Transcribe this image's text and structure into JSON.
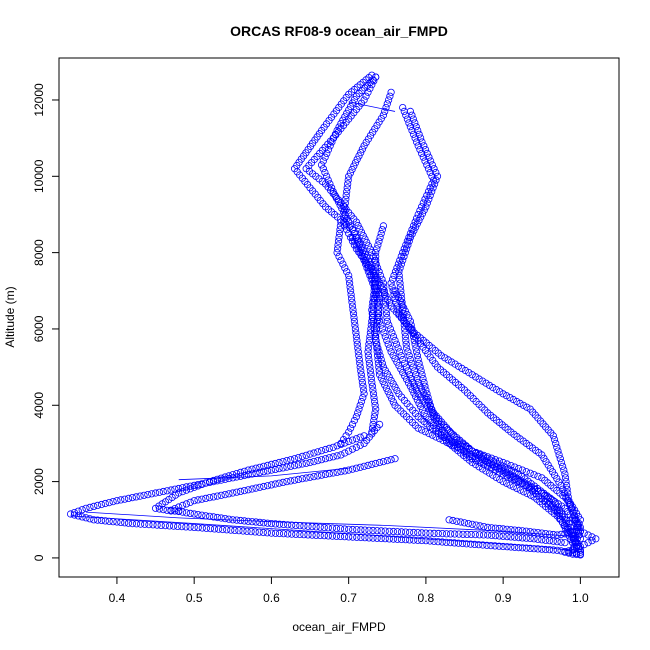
{
  "chart_data": {
    "type": "scatter",
    "title": "ORCAS RF08-9 ocean_air_FMPD",
    "xlabel": "ocean_air_FMPD",
    "ylabel": "Altitude (m)",
    "xlim": [
      0.325,
      1.05
    ],
    "ylim": [
      -500,
      13100
    ],
    "xticks": [
      0.4,
      0.5,
      0.6,
      0.7,
      0.8,
      0.9,
      1.0
    ],
    "xtick_labels": [
      "0.4",
      "0.5",
      "0.6",
      "0.7",
      "0.8",
      "0.9",
      "1.0"
    ],
    "yticks": [
      0,
      2000,
      4000,
      6000,
      8000,
      10000,
      12000
    ],
    "ytick_labels": [
      "0",
      "2000",
      "4000",
      "6000",
      "8000",
      "10000",
      "12000"
    ],
    "grid": false,
    "marker": "open-circle",
    "color": "#0000ff",
    "profiles": [
      [
        [
          0.73,
          12650
        ],
        [
          0.7,
          12150
        ],
        [
          0.665,
          11200
        ],
        [
          0.63,
          10200
        ],
        [
          0.67,
          9200
        ],
        [
          0.705,
          8600
        ],
        [
          0.72,
          7900
        ],
        [
          0.735,
          7100
        ],
        [
          0.74,
          6200
        ],
        [
          0.755,
          5400
        ],
        [
          0.78,
          4500
        ],
        [
          0.8,
          3700
        ],
        [
          0.83,
          3000
        ],
        [
          0.86,
          2500
        ],
        [
          0.9,
          2000
        ],
        [
          0.94,
          1600
        ],
        [
          0.97,
          1100
        ],
        [
          0.99,
          600
        ],
        [
          1.0,
          150
        ]
      ],
      [
        [
          0.735,
          12600
        ],
        [
          0.72,
          12000
        ],
        [
          0.68,
          11000
        ],
        [
          0.645,
          10200
        ],
        [
          0.67,
          9800
        ],
        [
          0.71,
          8800
        ],
        [
          0.73,
          8000
        ],
        [
          0.745,
          7200
        ],
        [
          0.75,
          6200
        ],
        [
          0.77,
          5200
        ],
        [
          0.79,
          4300
        ],
        [
          0.82,
          3500
        ],
        [
          0.86,
          2800
        ],
        [
          0.92,
          2200
        ],
        [
          0.965,
          1500
        ],
        [
          0.985,
          900
        ],
        [
          1.0,
          200
        ]
      ],
      [
        [
          0.735,
          12600
        ],
        [
          0.71,
          12100
        ],
        [
          0.685,
          11200
        ],
        [
          0.665,
          10300
        ],
        [
          0.68,
          9600
        ],
        [
          0.7,
          8800
        ],
        [
          0.71,
          8400
        ],
        [
          0.73,
          7600
        ],
        [
          0.74,
          6800
        ],
        [
          0.735,
          5800
        ],
        [
          0.74,
          4800
        ],
        [
          0.76,
          4000
        ],
        [
          0.79,
          3400
        ],
        [
          0.85,
          2800
        ],
        [
          0.9,
          2300
        ],
        [
          0.95,
          1700
        ],
        [
          0.98,
          1000
        ],
        [
          0.995,
          300
        ]
      ],
      [
        [
          0.755,
          12200
        ],
        [
          0.745,
          11600
        ],
        [
          0.72,
          10800
        ],
        [
          0.7,
          10000
        ],
        [
          0.695,
          9200
        ],
        [
          0.695,
          8700
        ],
        [
          0.71,
          8100
        ],
        [
          0.735,
          7400
        ],
        [
          0.755,
          6600
        ],
        [
          0.785,
          5900
        ],
        [
          0.82,
          5300
        ],
        [
          0.86,
          4800
        ],
        [
          0.9,
          4300
        ],
        [
          0.935,
          3900
        ],
        [
          0.965,
          3200
        ],
        [
          0.98,
          2200
        ],
        [
          0.985,
          1500
        ],
        [
          1.0,
          700
        ],
        [
          0.99,
          200
        ]
      ],
      [
        [
          0.77,
          11800
        ],
        [
          0.79,
          10800
        ],
        [
          0.81,
          9900
        ],
        [
          0.79,
          9000
        ],
        [
          0.77,
          8000
        ],
        [
          0.755,
          7200
        ],
        [
          0.765,
          6400
        ],
        [
          0.79,
          5700
        ],
        [
          0.815,
          5000
        ],
        [
          0.85,
          4400
        ],
        [
          0.88,
          3800
        ],
        [
          0.91,
          3300
        ],
        [
          0.95,
          2700
        ],
        [
          0.975,
          1900
        ],
        [
          0.99,
          1200
        ],
        [
          1.0,
          500
        ]
      ],
      [
        [
          0.78,
          11700
        ],
        [
          0.795,
          10900
        ],
        [
          0.815,
          10000
        ],
        [
          0.8,
          9200
        ],
        [
          0.78,
          8400
        ],
        [
          0.765,
          7500
        ],
        [
          0.77,
          6500
        ],
        [
          0.775,
          5500
        ],
        [
          0.79,
          4600
        ],
        [
          0.81,
          3800
        ],
        [
          0.84,
          3100
        ],
        [
          0.88,
          2500
        ],
        [
          0.93,
          1900
        ],
        [
          0.97,
          1200
        ],
        [
          0.99,
          400
        ]
      ],
      [
        [
          0.69,
          8800
        ],
        [
          0.685,
          8000
        ],
        [
          0.7,
          7400
        ],
        [
          0.705,
          6600
        ],
        [
          0.71,
          5800
        ],
        [
          0.715,
          5000
        ],
        [
          0.72,
          4300
        ],
        [
          0.71,
          3700
        ],
        [
          0.7,
          3300
        ],
        [
          0.69,
          3000
        ]
      ],
      [
        [
          0.705,
          8400
        ],
        [
          0.72,
          7800
        ],
        [
          0.735,
          7000
        ],
        [
          0.73,
          6200
        ],
        [
          0.725,
          5400
        ],
        [
          0.73,
          4600
        ],
        [
          0.735,
          3900
        ],
        [
          0.73,
          3300
        ]
      ],
      [
        [
          0.745,
          8700
        ],
        [
          0.735,
          8000
        ],
        [
          0.735,
          7300
        ],
        [
          0.73,
          6500
        ],
        [
          0.735,
          5700
        ],
        [
          0.745,
          5000
        ],
        [
          0.765,
          4300
        ],
        [
          0.79,
          3700
        ],
        [
          0.82,
          3200
        ],
        [
          0.86,
          2800
        ],
        [
          0.9,
          2500
        ],
        [
          0.95,
          2100
        ],
        [
          0.985,
          1500
        ],
        [
          1.0,
          1000
        ],
        [
          0.99,
          400
        ]
      ],
      [
        [
          0.76,
          7000
        ],
        [
          0.78,
          6200
        ],
        [
          0.79,
          5200
        ],
        [
          0.8,
          4400
        ],
        [
          0.81,
          3700
        ],
        [
          0.83,
          3100
        ],
        [
          0.86,
          2600
        ],
        [
          0.89,
          2300
        ],
        [
          0.92,
          2000
        ],
        [
          0.95,
          1700
        ],
        [
          0.98,
          1300
        ],
        [
          1.0,
          800
        ]
      ],
      [
        [
          0.74,
          3500
        ],
        [
          0.72,
          3000
        ],
        [
          0.69,
          2700
        ],
        [
          0.65,
          2500
        ],
        [
          0.6,
          2300
        ],
        [
          0.55,
          2100
        ],
        [
          0.5,
          1900
        ],
        [
          0.45,
          1700
        ],
        [
          0.4,
          1500
        ],
        [
          0.36,
          1300
        ],
        [
          0.34,
          1150
        ],
        [
          0.37,
          1000
        ],
        [
          0.42,
          900
        ],
        [
          0.5,
          800
        ],
        [
          0.6,
          650
        ],
        [
          0.7,
          550
        ],
        [
          0.8,
          450
        ],
        [
          0.9,
          300
        ],
        [
          0.97,
          200
        ],
        [
          1.0,
          100
        ]
      ],
      [
        [
          0.72,
          3200
        ],
        [
          0.68,
          2900
        ],
        [
          0.63,
          2600
        ],
        [
          0.57,
          2300
        ],
        [
          0.52,
          2000
        ],
        [
          0.48,
          1700
        ],
        [
          0.45,
          1300
        ],
        [
          0.47,
          1230
        ],
        [
          0.48,
          1230
        ]
      ],
      [
        [
          0.76,
          2600
        ],
        [
          0.7,
          2300
        ],
        [
          0.62,
          2000
        ],
        [
          0.55,
          1700
        ],
        [
          0.5,
          1500
        ],
        [
          0.47,
          1250
        ],
        [
          0.5,
          1150
        ],
        [
          0.55,
          1000
        ],
        [
          0.6,
          900
        ],
        [
          0.7,
          750
        ],
        [
          0.8,
          650
        ],
        [
          0.88,
          600
        ],
        [
          0.94,
          500
        ],
        [
          0.98,
          400
        ]
      ],
      [
        [
          0.83,
          1000
        ],
        [
          0.88,
          800
        ],
        [
          0.93,
          700
        ],
        [
          0.97,
          600
        ],
        [
          1.0,
          700
        ],
        [
          1.02,
          500
        ],
        [
          1.0,
          300
        ],
        [
          0.98,
          150
        ],
        [
          0.99,
          100
        ],
        [
          1.0,
          80
        ]
      ]
    ],
    "connected_segments": [
      [
        [
          0.36,
          1200
        ],
        [
          0.48,
          1050
        ],
        [
          0.6,
          950
        ],
        [
          0.75,
          850
        ],
        [
          0.9,
          700
        ],
        [
          1.0,
          550
        ]
      ],
      [
        [
          0.34,
          1100
        ],
        [
          0.5,
          900
        ],
        [
          0.65,
          700
        ],
        [
          0.8,
          500
        ],
        [
          0.95,
          300
        ],
        [
          1.0,
          150
        ]
      ],
      [
        [
          0.7,
          11950
        ],
        [
          0.76,
          11700
        ]
      ],
      [
        [
          0.48,
          2050
        ],
        [
          0.6,
          2150
        ],
        [
          0.7,
          2350
        ]
      ]
    ]
  }
}
